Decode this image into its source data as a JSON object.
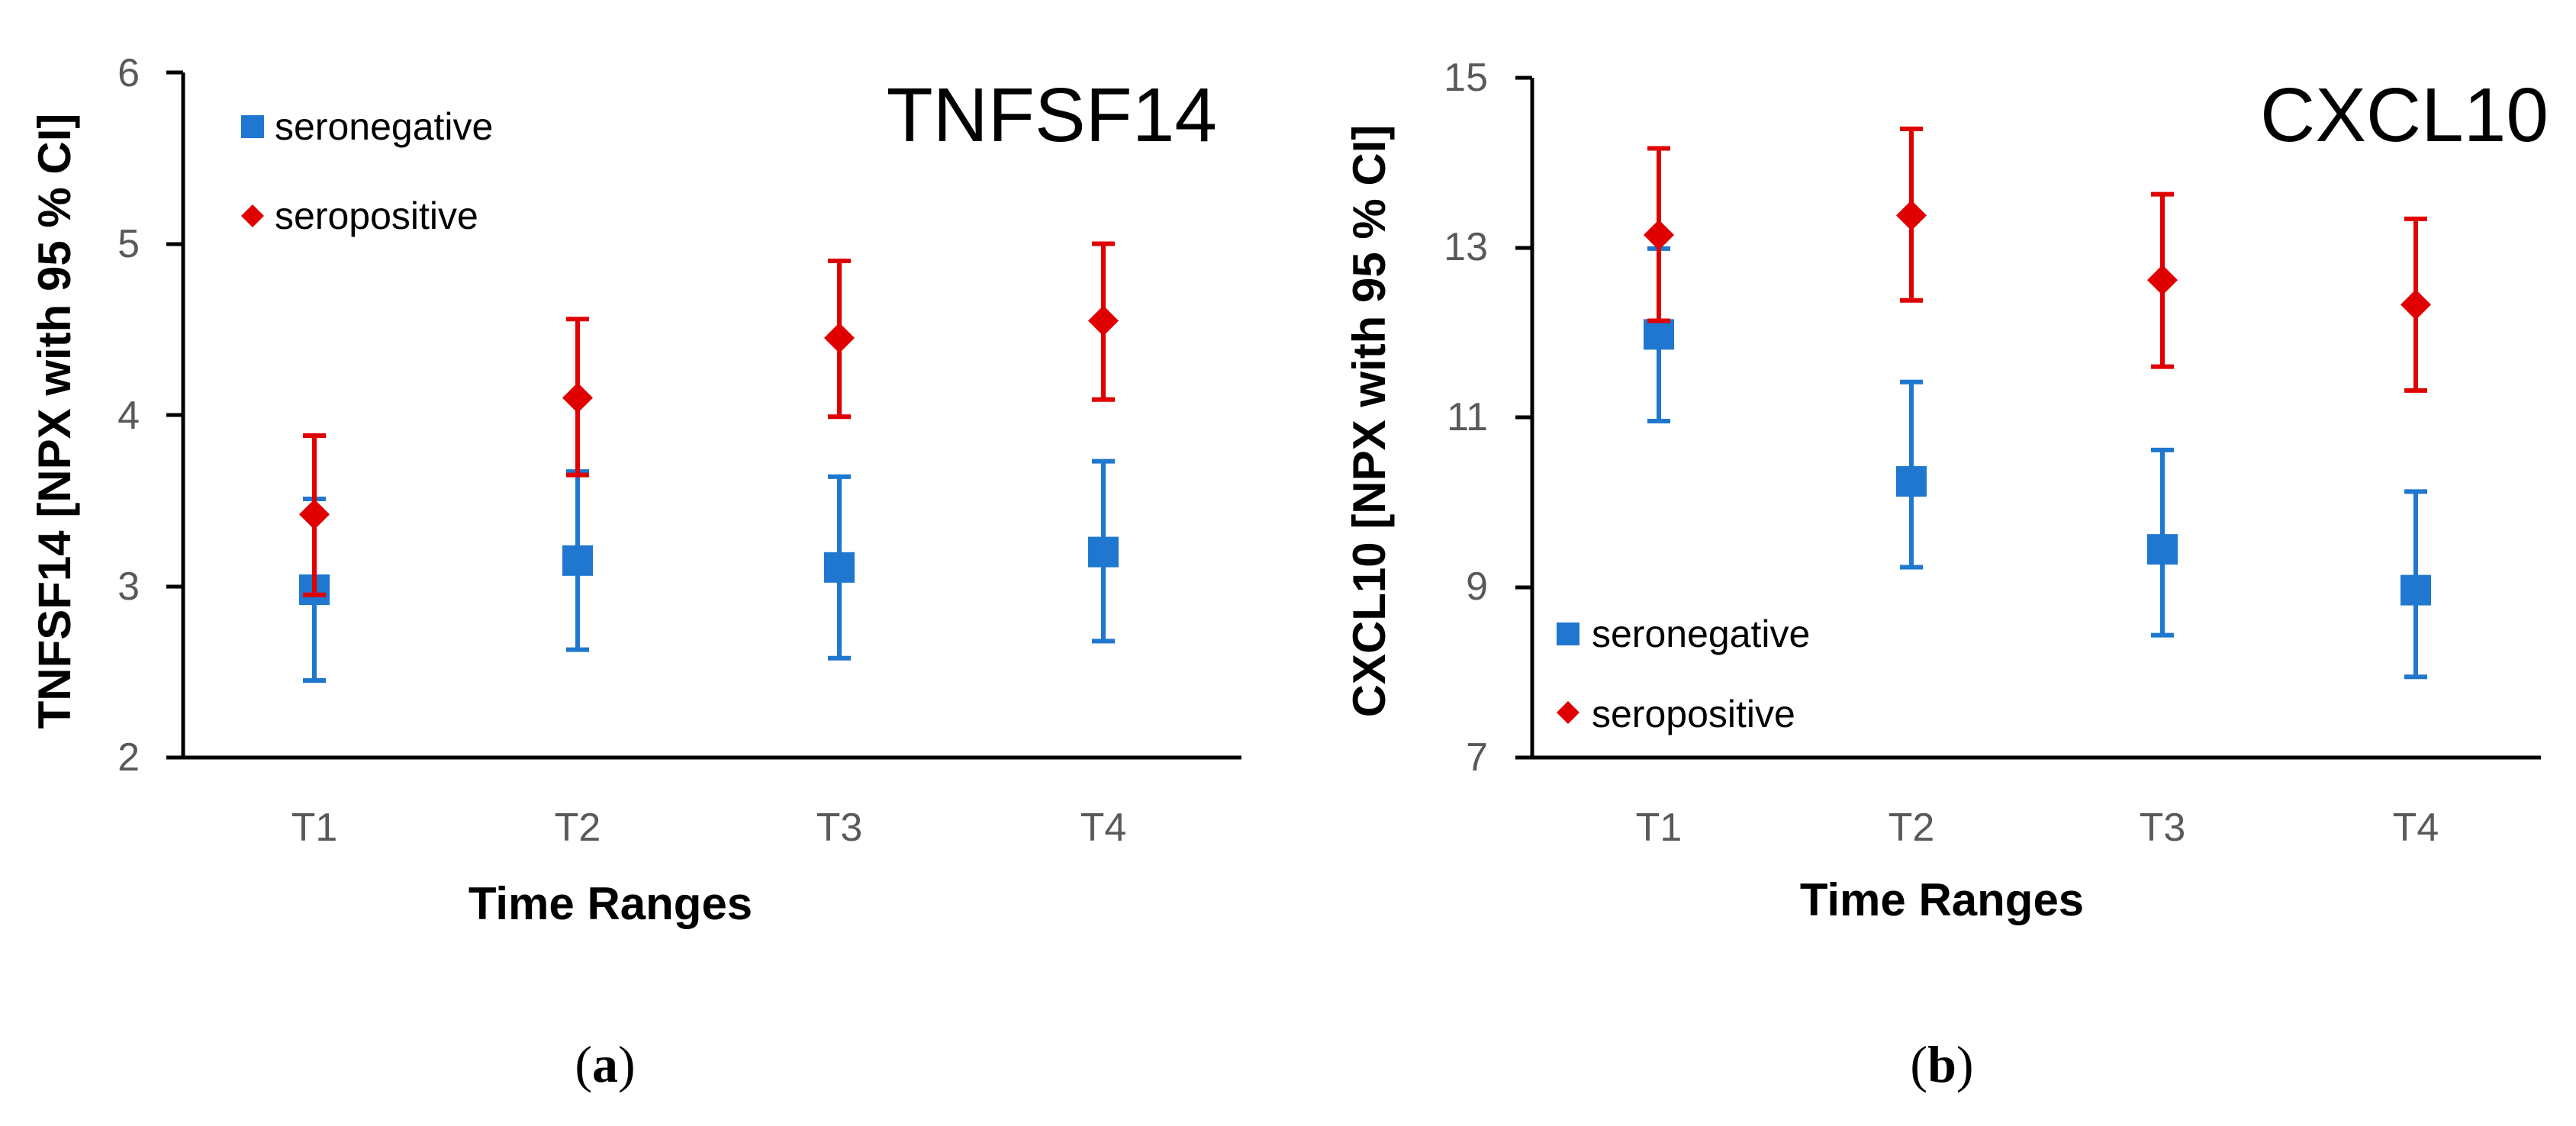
{
  "colors": {
    "seronegative": "#1F77CF",
    "seropositive": "#E00000",
    "axis": "#000000",
    "tick_text": "#595959"
  },
  "chart_data": [
    {
      "type": "scatter",
      "title": "TNFSF14",
      "panel_label": "a",
      "xlabel": "Time Ranges",
      "ylabel": "TNFSF14 [NPX with 95 % CI]",
      "categories": [
        "T1",
        "T2",
        "T3",
        "T4"
      ],
      "ylim": [
        2,
        6
      ],
      "yticks": [
        "2",
        "3",
        "4",
        "5",
        "6"
      ],
      "legend_position": "top-left",
      "series": [
        {
          "name": "seronegative",
          "marker": "square",
          "values": [
            2.98,
            3.15,
            3.11,
            3.2
          ],
          "lower": [
            2.45,
            2.63,
            2.58,
            2.68
          ],
          "upper": [
            3.51,
            3.67,
            3.64,
            3.73
          ]
        },
        {
          "name": "seropositive",
          "marker": "diamond",
          "values": [
            3.42,
            4.1,
            4.45,
            4.55
          ],
          "lower": [
            2.95,
            3.65,
            3.99,
            4.09
          ],
          "upper": [
            3.88,
            4.56,
            4.9,
            5.0
          ]
        }
      ]
    },
    {
      "type": "scatter",
      "title": "CXCL10",
      "panel_label": "b",
      "xlabel": "Time Ranges",
      "ylabel": "CXCL10 [NPX with 95 % CI]",
      "categories": [
        "T1",
        "T2",
        "T3",
        "T4"
      ],
      "ylim": [
        7,
        15
      ],
      "yticks": [
        "7",
        "9",
        "11",
        "13",
        "15"
      ],
      "legend_position": "bottom-left",
      "series": [
        {
          "name": "seronegative",
          "marker": "square",
          "values": [
            11.98,
            10.25,
            9.45,
            8.97
          ],
          "lower": [
            10.96,
            9.24,
            8.44,
            7.95
          ],
          "upper": [
            12.99,
            11.42,
            10.62,
            10.13
          ]
        },
        {
          "name": "seropositive",
          "marker": "diamond",
          "values": [
            13.15,
            13.38,
            12.62,
            12.33
          ],
          "lower": [
            12.14,
            12.38,
            11.6,
            11.32
          ],
          "upper": [
            14.17,
            14.4,
            13.63,
            13.34
          ]
        }
      ]
    }
  ]
}
